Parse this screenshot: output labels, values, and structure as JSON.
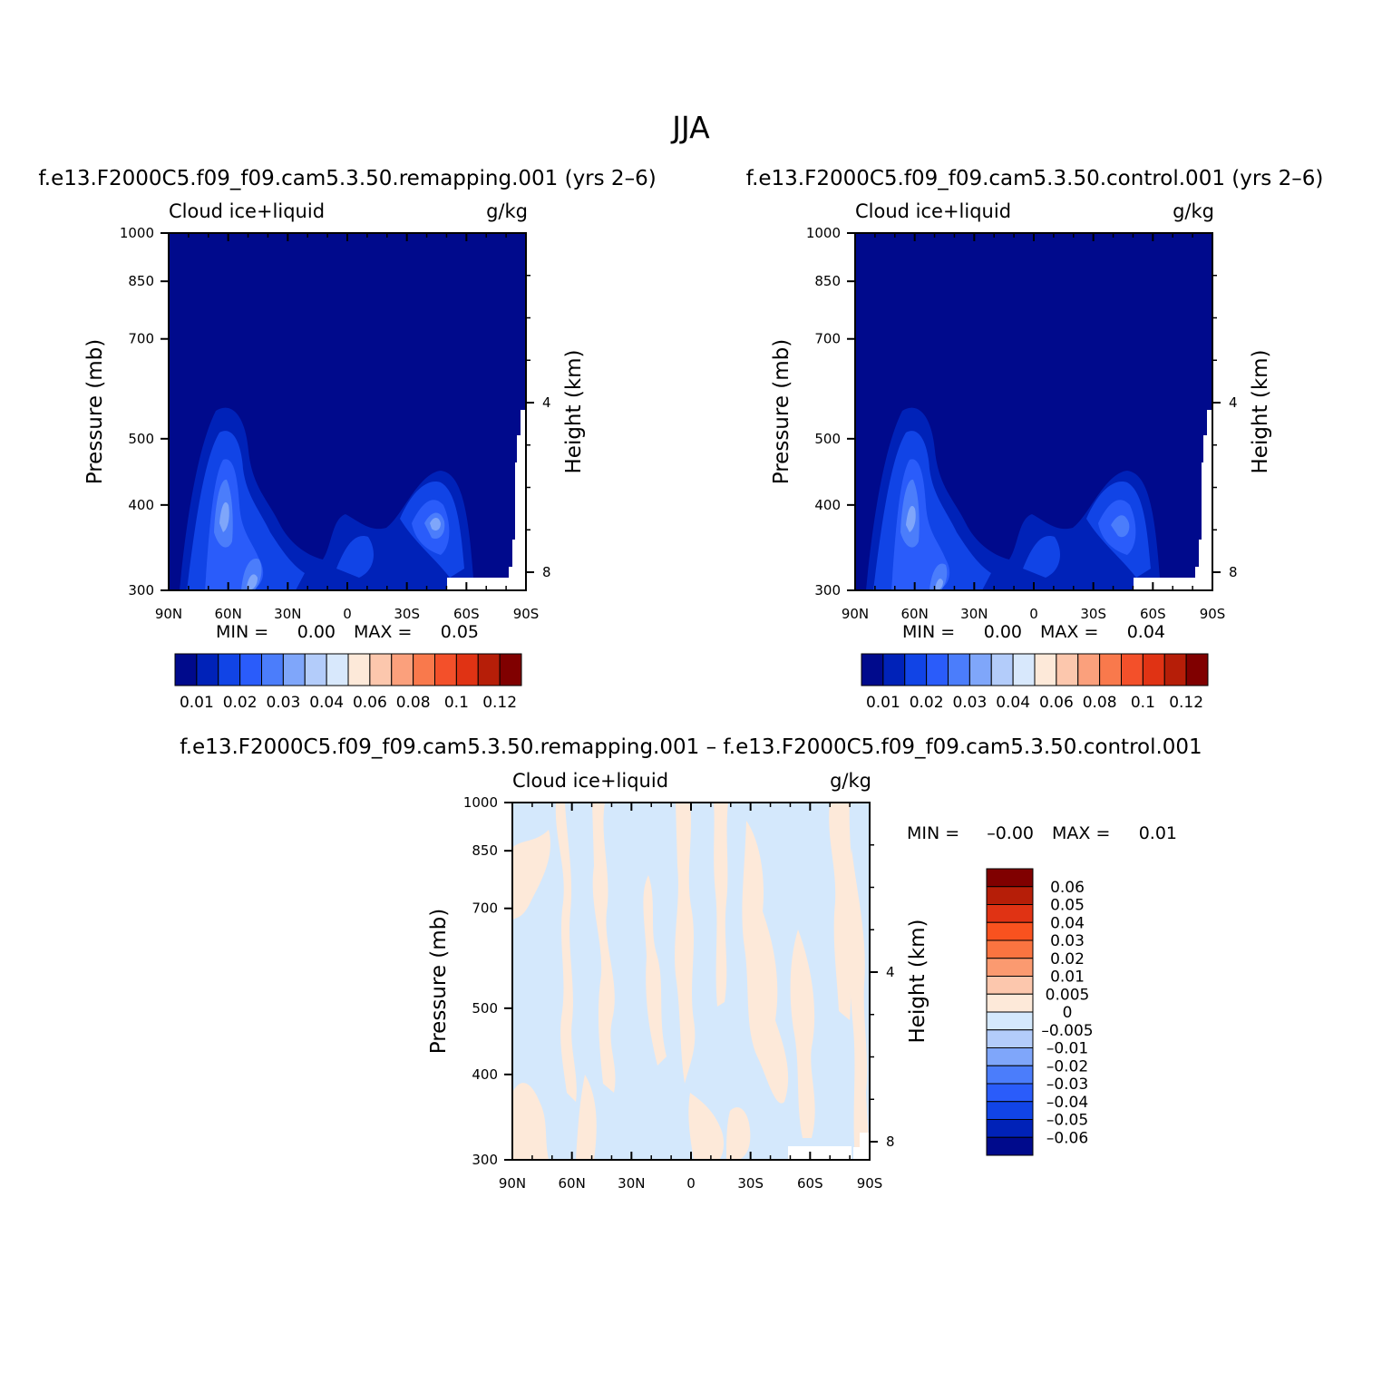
{
  "figure_title": "JJA",
  "colors": {
    "frame": "#000000",
    "missing": "#ffffff",
    "abs_fill_base": "#000a8c",
    "diff_neg": "#d4e8fc",
    "diff_pos": "#fde9d9"
  },
  "panels": [
    {
      "title": "f.e13.F2000C5.f09_f09.cam5.3.50.remapping.001  (yrs 2–6)",
      "left_label": "Cloud  ice+liquid",
      "right_label": "g/kg",
      "ylabel": "Pressure  (mb)",
      "y2label": "Height  (km)",
      "min_label": "MIN  =",
      "min_value": "0.00",
      "max_label": "MAX  =",
      "max_value": "0.05"
    },
    {
      "title": "f.e13.F2000C5.f09_f09.cam5.3.50.control.001  (yrs 2–6)",
      "left_label": "Cloud  ice+liquid",
      "right_label": "g/kg",
      "ylabel": "Pressure  (mb)",
      "y2label": "Height  (km)",
      "min_label": "MIN  =",
      "min_value": "0.00",
      "max_label": "MAX  =",
      "max_value": "0.04"
    },
    {
      "title": "f.e13.F2000C5.f09_f09.cam5.3.50.remapping.001  –  f.e13.F2000C5.f09_f09.cam5.3.50.control.001",
      "left_label": "Cloud  ice+liquid",
      "right_label": "g/kg",
      "ylabel": "Pressure  (mb)",
      "y2label": "Height  (km)",
      "min_label": "MIN  =",
      "min_value": "–0.00",
      "max_label": "MAX  =",
      "max_value": "0.01"
    }
  ],
  "chart_data": [
    {
      "type": "heatmap",
      "panel": 0,
      "x_ticks": [
        "90N",
        "60N",
        "30N",
        "0",
        "30S",
        "60S",
        "90S"
      ],
      "xlim": [
        90,
        -90
      ],
      "y_ticks": [
        300,
        400,
        500,
        700,
        850,
        1000
      ],
      "y_scale": "log-pressure",
      "ylim": [
        1000,
        300
      ],
      "y2_ticks": [
        8,
        4
      ],
      "contour_levels": [
        0.01,
        0.02,
        0.03,
        0.04,
        0.06,
        0.08,
        0.1,
        0.12
      ],
      "colorbar_labels": [
        "0.01",
        "0.02",
        "0.03",
        "0.04",
        "0.06",
        "0.08",
        "0.1",
        "0.12"
      ],
      "colorbar_colors": [
        "#000a8c",
        "#0022b8",
        "#1144e6",
        "#2a5cfa",
        "#4b7dfb",
        "#7fa6fa",
        "#b3ccfa",
        "#d8e8fc",
        "#fde9d9",
        "#fcc7ad",
        "#fba07c",
        "#f9794c",
        "#f3502a",
        "#e03314",
        "#b61e08",
        "#800000"
      ],
      "colorbar_orientation": "horizontal"
    },
    {
      "type": "heatmap",
      "panel": 1,
      "x_ticks": [
        "90N",
        "60N",
        "30N",
        "0",
        "30S",
        "60S",
        "90S"
      ],
      "xlim": [
        90,
        -90
      ],
      "y_ticks": [
        300,
        400,
        500,
        700,
        850,
        1000
      ],
      "y_scale": "log-pressure",
      "ylim": [
        1000,
        300
      ],
      "y2_ticks": [
        8,
        4
      ],
      "contour_levels": [
        0.01,
        0.02,
        0.03,
        0.04,
        0.06,
        0.08,
        0.1,
        0.12
      ],
      "colorbar_labels": [
        "0.01",
        "0.02",
        "0.03",
        "0.04",
        "0.06",
        "0.08",
        "0.1",
        "0.12"
      ],
      "colorbar_colors": [
        "#000a8c",
        "#0022b8",
        "#1144e6",
        "#2a5cfa",
        "#4b7dfb",
        "#7fa6fa",
        "#b3ccfa",
        "#d8e8fc",
        "#fde9d9",
        "#fcc7ad",
        "#fba07c",
        "#f9794c",
        "#f3502a",
        "#e03314",
        "#b61e08",
        "#800000"
      ],
      "colorbar_orientation": "horizontal"
    },
    {
      "type": "heatmap",
      "panel": 2,
      "x_ticks": [
        "90N",
        "60N",
        "30N",
        "0",
        "30S",
        "60S",
        "90S"
      ],
      "xlim": [
        90,
        -90
      ],
      "y_ticks": [
        300,
        400,
        500,
        700,
        850,
        1000
      ],
      "y_scale": "log-pressure",
      "ylim": [
        1000,
        300
      ],
      "y2_ticks": [
        8,
        4
      ],
      "contour_levels": [
        -0.06,
        -0.05,
        -0.04,
        -0.03,
        -0.02,
        -0.01,
        -0.005,
        0,
        0.005,
        0.01,
        0.02,
        0.03,
        0.04,
        0.05,
        0.06
      ],
      "colorbar_labels": [
        "0.06",
        "0.05",
        "0.04",
        "0.03",
        "0.02",
        "0.01",
        "0.005",
        "0",
        "–0.005",
        "–0.01",
        "–0.02",
        "–0.03",
        "–0.04",
        "–0.05",
        "–0.06"
      ],
      "colorbar_colors": [
        "#800000",
        "#b61e08",
        "#e03314",
        "#f9521f",
        "#fa7440",
        "#fb9a70",
        "#fcc7ad",
        "#fde9d9",
        "#d4e8fc",
        "#b3ccfa",
        "#7fa6fa",
        "#4b7dfb",
        "#2a5cfa",
        "#1144e6",
        "#0022b8",
        "#000a8c"
      ],
      "colorbar_orientation": "vertical"
    }
  ]
}
